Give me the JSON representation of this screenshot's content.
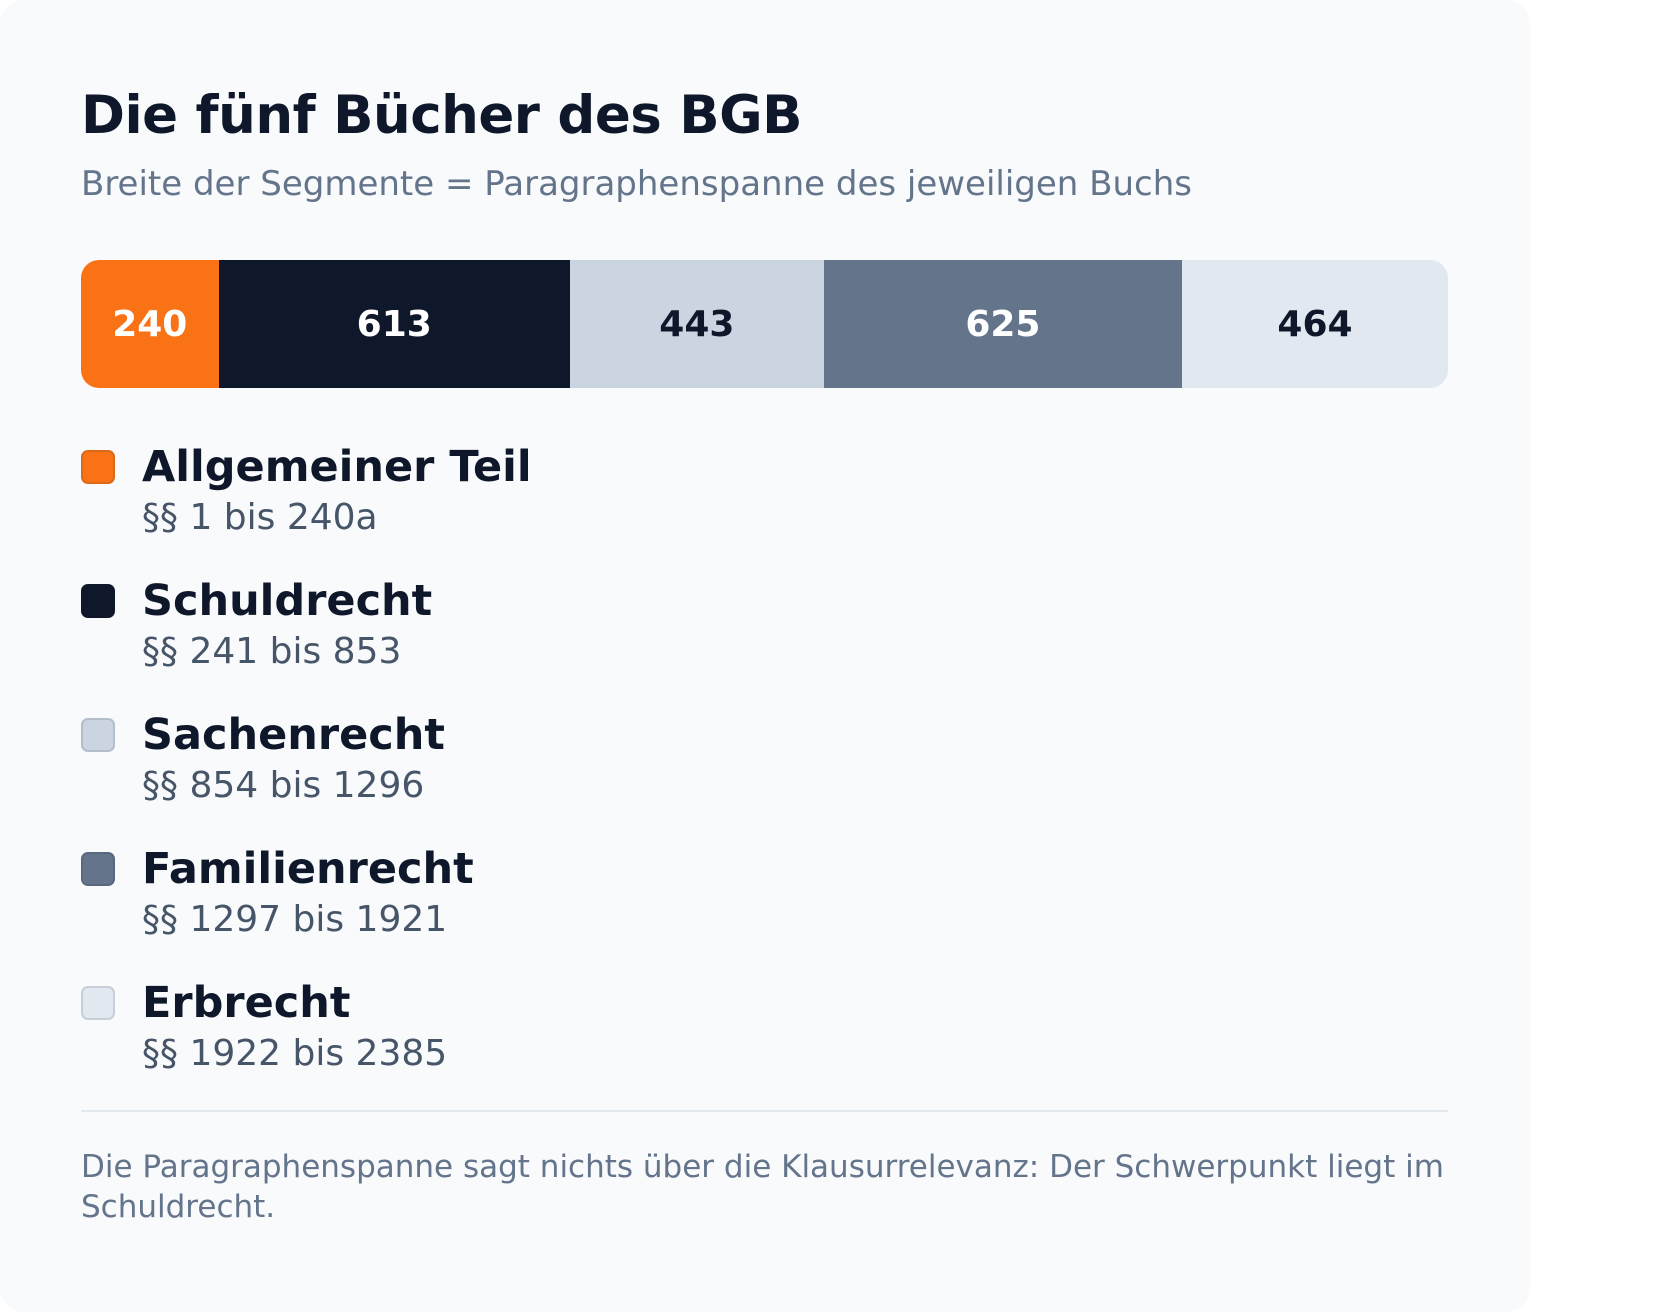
{
  "chart_data": {
    "type": "bar",
    "stacked": true,
    "orientation": "horizontal",
    "title": "Die fünf Bücher des BGB",
    "subtitle": "Breite der Segmente = Paragraphenspanne des jeweiligen Buchs",
    "categories": [
      "Allgemeiner Teil",
      "Schuldrecht",
      "Sachenrecht",
      "Familienrecht",
      "Erbrecht"
    ],
    "values": [
      240,
      613,
      443,
      625,
      464
    ],
    "ranges": [
      "§§ 1 bis 240a",
      "§§ 241 bis 853",
      "§§ 854 bis 1296",
      "§§ 1297 bis 1921",
      "§§ 1922 bis 2385"
    ],
    "colors": [
      "#f97316",
      "#0f172a",
      "#cbd5e1",
      "#64748b",
      "#e2e8f0"
    ],
    "label_colors": [
      "#ffffff",
      "#ffffff",
      "#0f172a",
      "#ffffff",
      "#0f172a"
    ],
    "legend_position": "bottom",
    "grid": false
  },
  "footnote": "Die Paragraphenspanne sagt nichts über die Klausurrelevanz: Der Schwerpunkt liegt im Schuldrecht."
}
